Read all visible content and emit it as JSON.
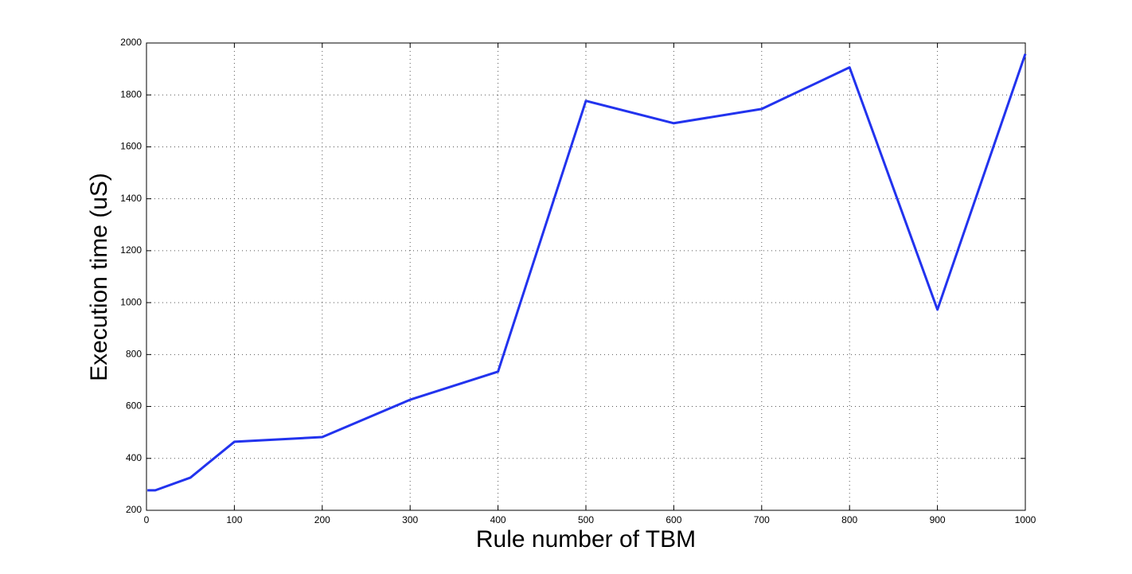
{
  "chart_data": {
    "type": "line",
    "x_label": "Rule number of TBM",
    "y_label": "Execution time (uS)",
    "x": [
      1,
      10,
      50,
      100,
      200,
      300,
      400,
      500,
      600,
      700,
      800,
      900,
      1000
    ],
    "series": [
      {
        "color": "#2233ee",
        "values": [
          277,
          277,
          326,
          464,
          482,
          626,
          734,
          1777,
          1691,
          1746,
          1906,
          973,
          1958
        ]
      }
    ],
    "xlim": [
      0,
      1000
    ],
    "xticks": [
      0,
      100,
      200,
      300,
      400,
      500,
      600,
      700,
      800,
      900,
      1000
    ],
    "ylim": [
      200,
      2000
    ],
    "yticks": [
      200,
      400,
      600,
      800,
      1000,
      1200,
      1400,
      1600,
      1800,
      2000
    ],
    "grid": true
  }
}
